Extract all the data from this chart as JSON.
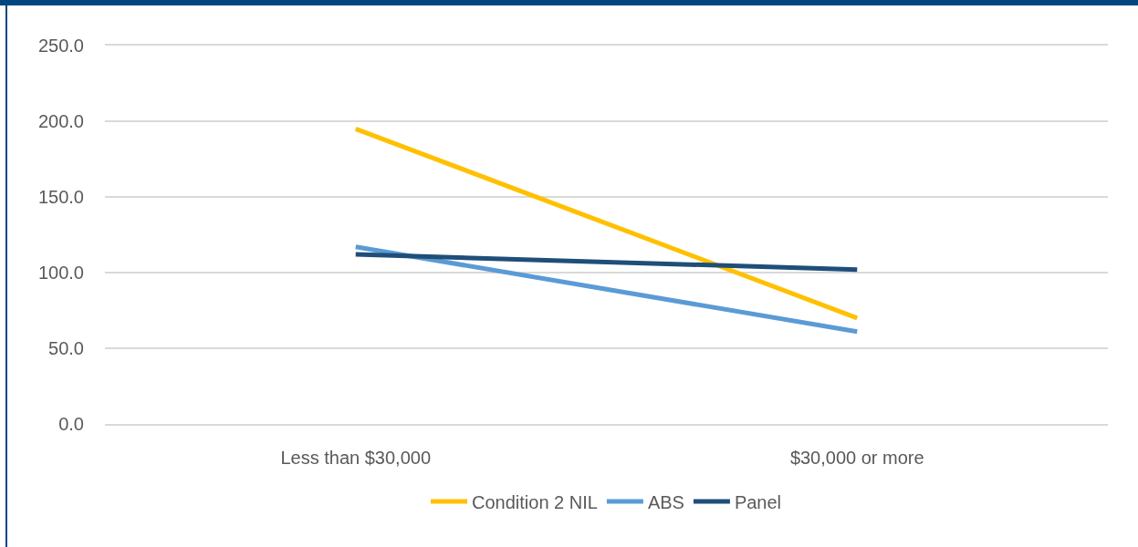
{
  "chart_data": {
    "type": "line",
    "categories": [
      "Less than $30,000",
      "$30,000 or more"
    ],
    "series": [
      {
        "name": "Condition 2 NIL",
        "color": "#ffc000",
        "values": [
          195,
          70
        ]
      },
      {
        "name": "ABS",
        "color": "#5b9bd5",
        "values": [
          117,
          61
        ]
      },
      {
        "name": "Panel",
        "color": "#1f4e79",
        "values": [
          112,
          102
        ]
      }
    ],
    "ylim": [
      0,
      250
    ],
    "yticks": [
      {
        "value": 0,
        "label": "0.0"
      },
      {
        "value": 50,
        "label": "50.0"
      },
      {
        "value": 100,
        "label": "100.0"
      },
      {
        "value": 150,
        "label": "150.0"
      },
      {
        "value": 200,
        "label": "200.0"
      },
      {
        "value": 250,
        "label": "250.0"
      }
    ],
    "grid": "y",
    "legend": "bottom",
    "marker": "none",
    "line_style": "solid"
  }
}
